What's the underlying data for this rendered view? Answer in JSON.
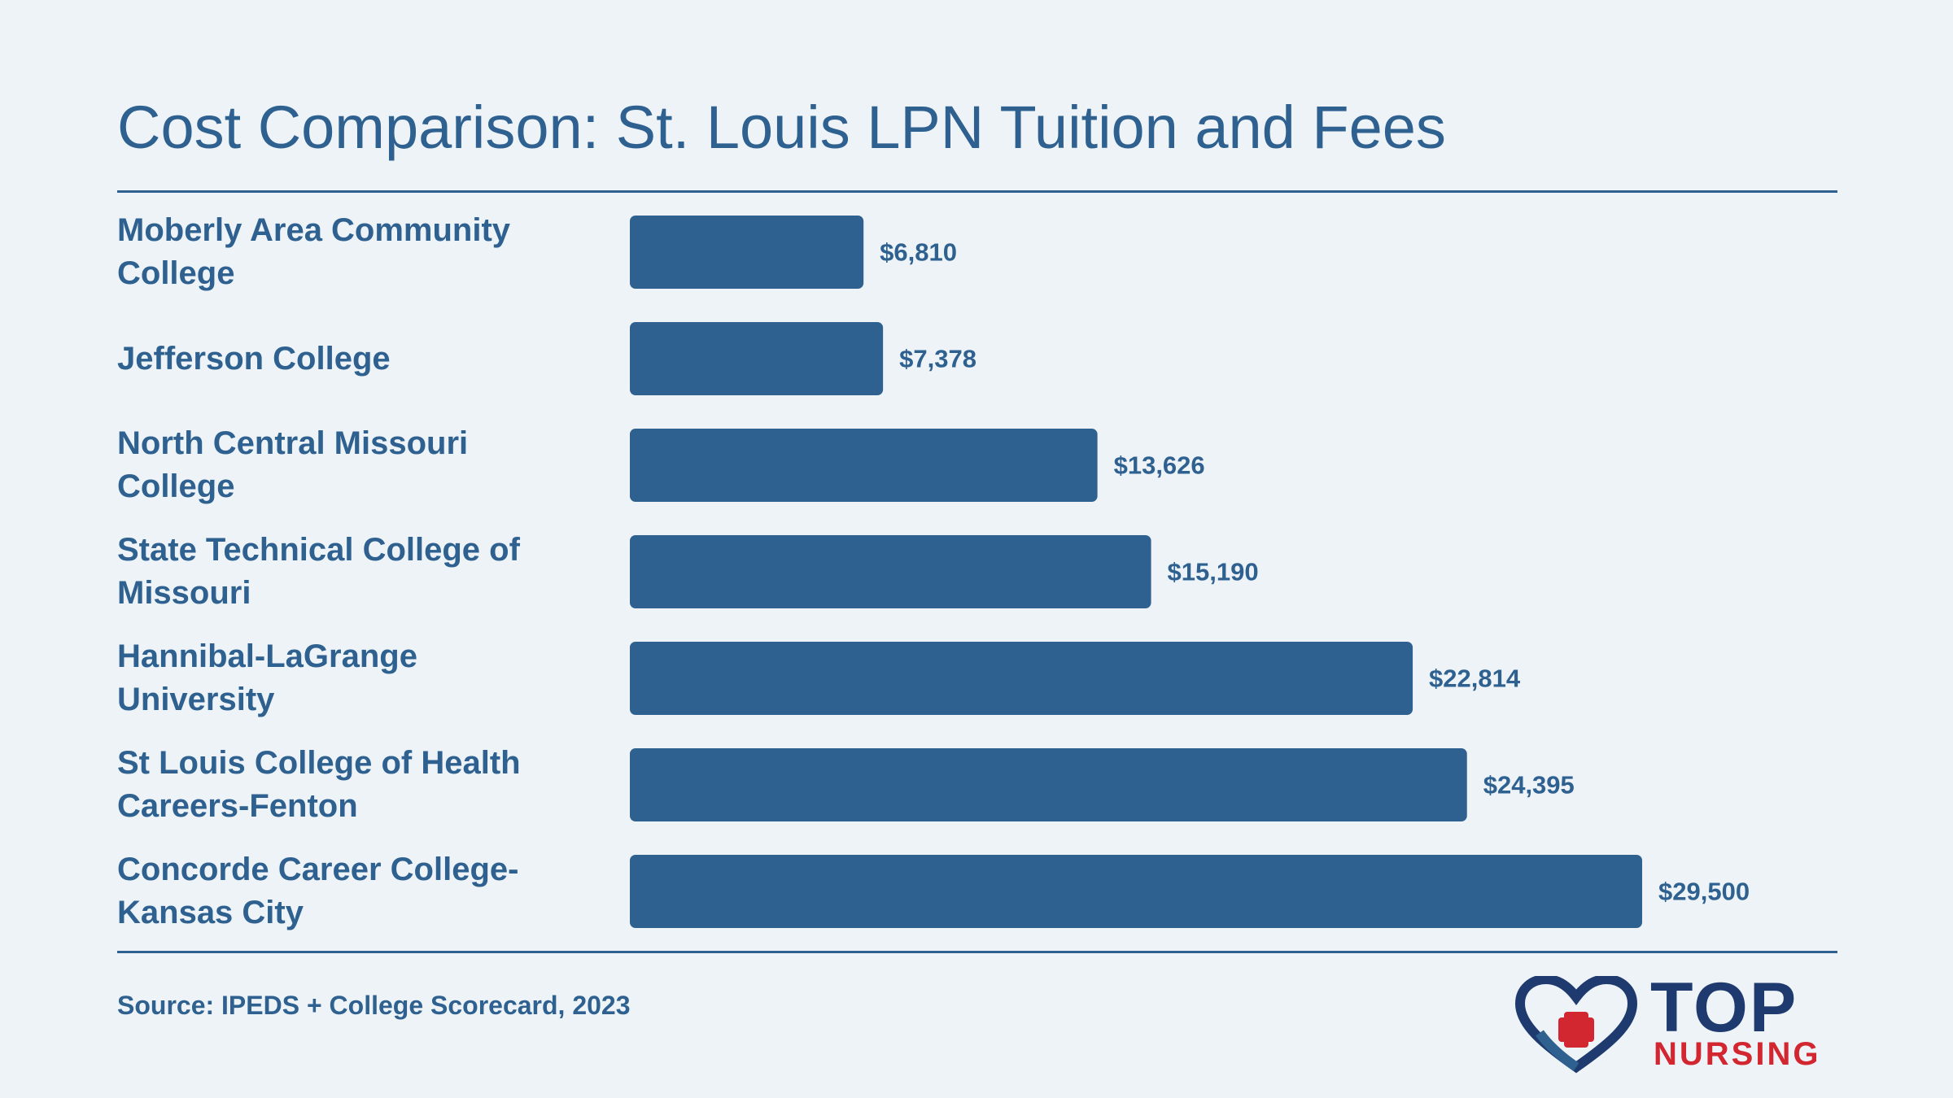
{
  "colors": {
    "background": "#eef3f7",
    "bar": "#2f6190",
    "text": "#2f6190",
    "logo_blue": "#1e3a6e",
    "logo_red": "#d22630"
  },
  "chart_data": {
    "type": "bar",
    "orientation": "horizontal",
    "title": "Cost Comparison: St. Louis LPN Tuition and Fees",
    "categories": [
      "Moberly Area Community College",
      "Jefferson College",
      "North Central Missouri College",
      "State Technical College of Missouri",
      "Hannibal-LaGrange University",
      "St Louis College of Health Careers-Fenton",
      "Concorde Career College-Kansas City"
    ],
    "values": [
      6810,
      7378,
      13626,
      15190,
      22814,
      24395,
      29500
    ],
    "value_labels": [
      "$6,810",
      "$7,378",
      "$13,626",
      "$15,190",
      "$22,814",
      "$24,395",
      "$29,500"
    ],
    "xlim": [
      0,
      29500
    ],
    "grid": false,
    "legend": "none"
  },
  "footer": {
    "source": "Source: IPEDS + College Scorecard, 2023"
  },
  "logo": {
    "top_text": "TOP",
    "bottom_text": "NURSING",
    "icon": "heart-cross-icon"
  }
}
